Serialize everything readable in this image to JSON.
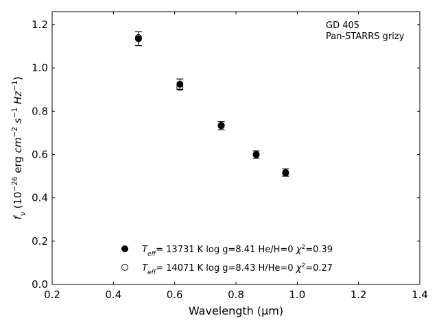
{
  "chart_data": {
    "type": "scatter",
    "x": [
      0.482,
      0.617,
      0.752,
      0.866,
      0.962
    ],
    "series": [
      {
        "label_parts": [
          {
            "text": "T",
            "style": "italic"
          },
          {
            "text": "eff",
            "style": "sub"
          },
          {
            "text": "= 13731 K  log g=8.41  He/H=0  ",
            "style": "normal"
          },
          {
            "text": "χ",
            "style": "italic"
          },
          {
            "text": "2",
            "style": "sup"
          },
          {
            "text": "=0.39",
            "style": "normal"
          }
        ],
        "marker": "filled",
        "color": "#000000",
        "values": [
          1.135,
          0.925,
          0.733,
          0.6,
          0.517
        ],
        "errors": [
          0.032,
          0.024,
          0.019,
          0.017,
          0.017
        ]
      },
      {
        "label_parts": [
          {
            "text": "T",
            "style": "italic"
          },
          {
            "text": "eff",
            "style": "sub"
          },
          {
            "text": "= 14071 K  log g=8.43  H/He=0  ",
            "style": "normal"
          },
          {
            "text": "χ",
            "style": "italic"
          },
          {
            "text": "2",
            "style": "sup"
          },
          {
            "text": "=0.27",
            "style": "normal"
          }
        ],
        "marker": "open",
        "color": "#000000",
        "values": [
          1.14,
          0.91,
          0.735,
          0.6,
          0.515
        ]
      }
    ],
    "xlabel": "Wavelength (μm)",
    "ylabel_parts": [
      {
        "text": "f",
        "style": "italic"
      },
      {
        "text": "ν",
        "style": "sub"
      },
      {
        "text": " (10",
        "style": "normal"
      },
      {
        "text": "−26",
        "style": "sup"
      },
      {
        "text": " erg ",
        "style": "normal"
      },
      {
        "text": "cm",
        "style": "italic"
      },
      {
        "text": "−2",
        "style": "sup"
      },
      {
        "text": " ",
        "style": "normal"
      },
      {
        "text": "s",
        "style": "italic"
      },
      {
        "text": "−1",
        "style": "sup"
      },
      {
        "text": " ",
        "style": "normal"
      },
      {
        "text": "Hz",
        "style": "italic"
      },
      {
        "text": "−1",
        "style": "sup"
      },
      {
        "text": ")",
        "style": "normal"
      }
    ],
    "annotations": [
      "GD 405",
      "Pan-STARRS grizy"
    ],
    "xlim": [
      0.2,
      1.4
    ],
    "xticks": [
      0.2,
      0.4,
      0.6,
      0.8,
      {
        "value": 1,
        "label": "1.0"
      },
      1.2,
      1.4
    ],
    "ylim": [
      0,
      1.26
    ],
    "yticks": [
      {
        "value": 0,
        "label": "0.0"
      },
      0.2,
      0.4,
      0.6,
      0.8,
      {
        "value": 1,
        "label": "1.0"
      },
      1.2
    ]
  }
}
